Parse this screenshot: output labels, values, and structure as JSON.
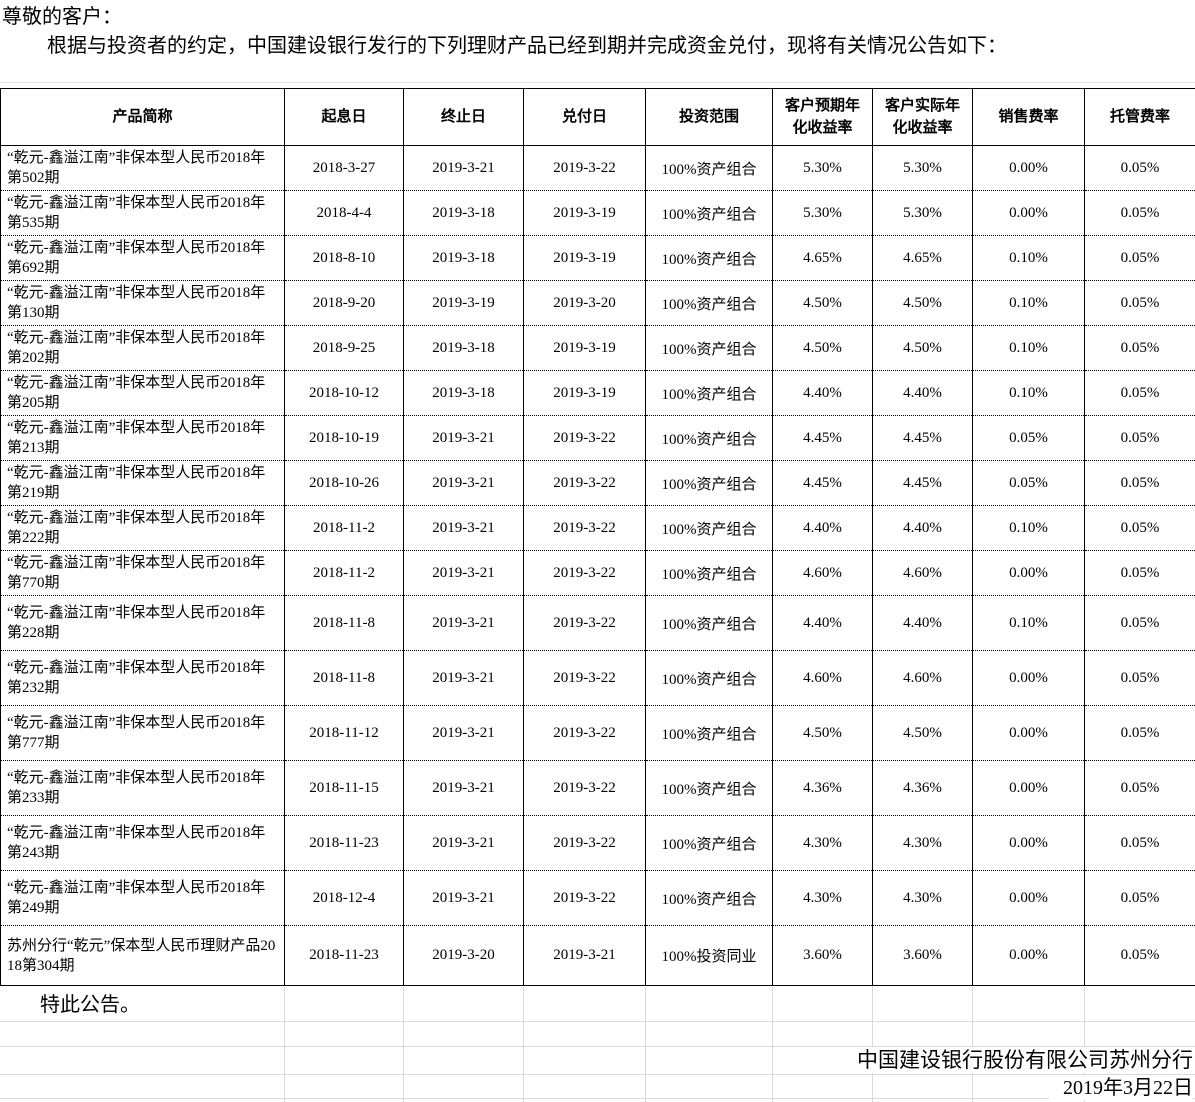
{
  "intro": {
    "salutation": "尊敬的客户：",
    "paragraph": "根据与投资者的约定，中国建设银行发行的下列理财产品已经到期并完成资金兑付，现将有关情况公告如下："
  },
  "table": {
    "headers": [
      "产品简称",
      "起息日",
      "终止日",
      "兑付日",
      "投资范围",
      "客户预期年化收益率",
      "客户实际年化收益率",
      "销售费率",
      "托管费率"
    ],
    "rows": [
      {
        "product": "“乾元-鑫溢江南”非保本型人民币2018年第502期",
        "start": "2018-3-27",
        "end": "2019-3-21",
        "pay": "2019-3-22",
        "scope": "100%资产组合",
        "expected": "5.30%",
        "actual": "5.30%",
        "sales_fee": "0.00%",
        "custody_fee": "0.05%"
      },
      {
        "product": "“乾元-鑫溢江南”非保本型人民币2018年第535期",
        "start": "2018-4-4",
        "end": "2019-3-18",
        "pay": "2019-3-19",
        "scope": "100%资产组合",
        "expected": "5.30%",
        "actual": "5.30%",
        "sales_fee": "0.00%",
        "custody_fee": "0.05%"
      },
      {
        "product": "“乾元-鑫溢江南”非保本型人民币2018年第692期",
        "start": "2018-8-10",
        "end": "2019-3-18",
        "pay": "2019-3-19",
        "scope": "100%资产组合",
        "expected": "4.65%",
        "actual": "4.65%",
        "sales_fee": "0.10%",
        "custody_fee": "0.05%"
      },
      {
        "product": "“乾元-鑫溢江南”非保本型人民币2018年第130期",
        "start": "2018-9-20",
        "end": "2019-3-19",
        "pay": "2019-3-20",
        "scope": "100%资产组合",
        "expected": "4.50%",
        "actual": "4.50%",
        "sales_fee": "0.10%",
        "custody_fee": "0.05%"
      },
      {
        "product": "“乾元-鑫溢江南”非保本型人民币2018年第202期",
        "start": "2018-9-25",
        "end": "2019-3-18",
        "pay": "2019-3-19",
        "scope": "100%资产组合",
        "expected": "4.50%",
        "actual": "4.50%",
        "sales_fee": "0.10%",
        "custody_fee": "0.05%"
      },
      {
        "product": "“乾元-鑫溢江南”非保本型人民币2018年第205期",
        "start": "2018-10-12",
        "end": "2019-3-18",
        "pay": "2019-3-19",
        "scope": "100%资产组合",
        "expected": "4.40%",
        "actual": "4.40%",
        "sales_fee": "0.10%",
        "custody_fee": "0.05%"
      },
      {
        "product": "“乾元-鑫溢江南”非保本型人民币2018年第213期",
        "start": "2018-10-19",
        "end": "2019-3-21",
        "pay": "2019-3-22",
        "scope": "100%资产组合",
        "expected": "4.45%",
        "actual": "4.45%",
        "sales_fee": "0.05%",
        "custody_fee": "0.05%"
      },
      {
        "product": "“乾元-鑫溢江南”非保本型人民币2018年第219期",
        "start": "2018-10-26",
        "end": "2019-3-21",
        "pay": "2019-3-22",
        "scope": "100%资产组合",
        "expected": "4.45%",
        "actual": "4.45%",
        "sales_fee": "0.05%",
        "custody_fee": "0.05%"
      },
      {
        "product": "“乾元-鑫溢江南”非保本型人民币2018年第222期",
        "start": "2018-11-2",
        "end": "2019-3-21",
        "pay": "2019-3-22",
        "scope": "100%资产组合",
        "expected": "4.40%",
        "actual": "4.40%",
        "sales_fee": "0.10%",
        "custody_fee": "0.05%"
      },
      {
        "product": "“乾元-鑫溢江南”非保本型人民币2018年第770期",
        "start": "2018-11-2",
        "end": "2019-3-21",
        "pay": "2019-3-22",
        "scope": "100%资产组合",
        "expected": "4.60%",
        "actual": "4.60%",
        "sales_fee": "0.00%",
        "custody_fee": "0.05%"
      },
      {
        "product": "“乾元-鑫溢江南”非保本型人民币2018年第228期",
        "start": "2018-11-8",
        "end": "2019-3-21",
        "pay": "2019-3-22",
        "scope": "100%资产组合",
        "expected": "4.40%",
        "actual": "4.40%",
        "sales_fee": "0.10%",
        "custody_fee": "0.05%"
      },
      {
        "product": "“乾元-鑫溢江南”非保本型人民币2018年第232期",
        "start": "2018-11-8",
        "end": "2019-3-21",
        "pay": "2019-3-22",
        "scope": "100%资产组合",
        "expected": "4.60%",
        "actual": "4.60%",
        "sales_fee": "0.00%",
        "custody_fee": "0.05%"
      },
      {
        "product": "“乾元-鑫溢江南”非保本型人民币2018年第777期",
        "start": "2018-11-12",
        "end": "2019-3-21",
        "pay": "2019-3-22",
        "scope": "100%资产组合",
        "expected": "4.50%",
        "actual": "4.50%",
        "sales_fee": "0.00%",
        "custody_fee": "0.05%"
      },
      {
        "product": "“乾元-鑫溢江南”非保本型人民币2018年第233期",
        "start": "2018-11-15",
        "end": "2019-3-21",
        "pay": "2019-3-22",
        "scope": "100%资产组合",
        "expected": "4.36%",
        "actual": "4.36%",
        "sales_fee": "0.00%",
        "custody_fee": "0.05%"
      },
      {
        "product": "“乾元-鑫溢江南”非保本型人民币2018年第243期",
        "start": "2018-11-23",
        "end": "2019-3-21",
        "pay": "2019-3-22",
        "scope": "100%资产组合",
        "expected": "4.30%",
        "actual": "4.30%",
        "sales_fee": "0.00%",
        "custody_fee": "0.05%"
      },
      {
        "product": "“乾元-鑫溢江南”非保本型人民币2018年第249期",
        "start": "2018-12-4",
        "end": "2019-3-21",
        "pay": "2019-3-22",
        "scope": "100%资产组合",
        "expected": "4.30%",
        "actual": "4.30%",
        "sales_fee": "0.00%",
        "custody_fee": "0.05%"
      },
      {
        "product": "苏州分行“乾元”保本型人民币理财产品2018第304期",
        "start": "2018-11-23",
        "end": "2019-3-20",
        "pay": "2019-3-21",
        "scope": "100%投资同业",
        "expected": "3.60%",
        "actual": "3.60%",
        "sales_fee": "0.00%",
        "custody_fee": "0.05%"
      }
    ]
  },
  "footer": {
    "note": "特此公告。",
    "issuer": "中国建设银行股份有限公司苏州分行",
    "date": "2019年3月22日"
  }
}
